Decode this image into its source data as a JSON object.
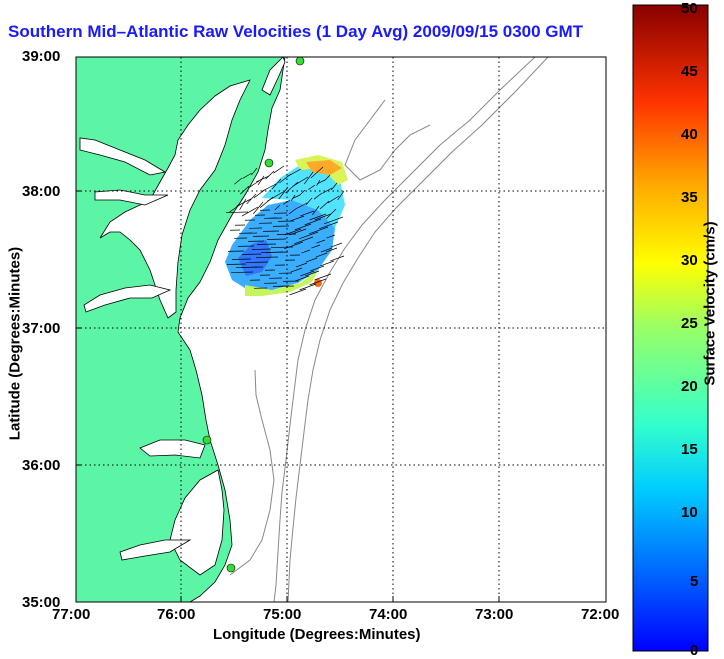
{
  "title": "Southern Mid–Atlantic Raw Velocities (1 Day Avg) 2009/09/15 0300 GMT",
  "map": {
    "xlabel": "Longitude (Degrees:Minutes)",
    "ylabel": "Latitude (Degrees:Minutes)",
    "lon_ticks": [
      "77:00",
      "76:00",
      "75:00",
      "74:00",
      "73:00",
      "72:00"
    ],
    "lat_ticks": [
      "39:00",
      "38:00",
      "37:00",
      "36:00",
      "35:00"
    ],
    "land_color": "#5cf5a6",
    "grid": "dotted"
  },
  "colorbar": {
    "label": "Surface Velocity (cm/s)",
    "ticks": [
      "50",
      "45",
      "40",
      "35",
      "30",
      "25",
      "20",
      "15",
      "10",
      "5",
      "0"
    ],
    "min": 0,
    "max": 50,
    "colormap": "jet"
  },
  "stations": [
    "station-north",
    "station-mid",
    "station-hatteras-north",
    "station-hatteras-south"
  ]
}
